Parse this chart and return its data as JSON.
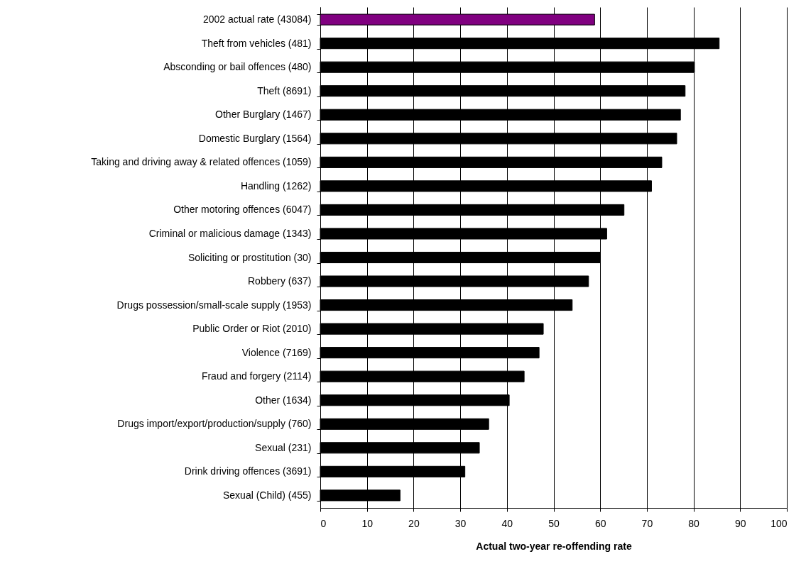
{
  "chart_data": {
    "type": "bar",
    "orientation": "horizontal",
    "xlabel": "Actual two-year re-offending rate",
    "categories": [
      "2002 actual rate (43084)",
      "Theft from vehicles (481)",
      "Absconding or bail offences (480)",
      "Theft (8691)",
      "Other Burglary (1467)",
      "Domestic Burglary (1564)",
      "Taking and driving away & related offences (1059)",
      "Handling (1262)",
      "Other motoring offences (6047)",
      "Criminal or malicious damage (1343)",
      "Soliciting or prostitution (30)",
      "Robbery (637)",
      "Drugs possession/small-scale supply (1953)",
      "Public Order or Riot (2010)",
      "Violence (7169)",
      "Fraud and forgery (2114)",
      "Other (1634)",
      "Drugs import/export/production/supply (760)",
      "Sexual (231)",
      "Drink driving offences (3691)",
      "Sexual (Child) (455)"
    ],
    "values": [
      58.8,
      85.5,
      80.2,
      78.2,
      77.2,
      76.4,
      73.2,
      71.0,
      65.1,
      61.4,
      60.0,
      57.5,
      54.0,
      47.8,
      46.9,
      43.7,
      40.5,
      36.1,
      34.1,
      31.0,
      17.1
    ],
    "colors": [
      "#800080",
      "#000000",
      "#000000",
      "#000000",
      "#000000",
      "#000000",
      "#000000",
      "#000000",
      "#000000",
      "#000000",
      "#000000",
      "#000000",
      "#000000",
      "#000000",
      "#000000",
      "#000000",
      "#000000",
      "#000000",
      "#000000",
      "#000000",
      "#000000"
    ],
    "xlim": [
      0,
      100
    ],
    "xticks": [
      0,
      10,
      20,
      30,
      40,
      50,
      60,
      70,
      80,
      90,
      100
    ],
    "grid": "x"
  }
}
